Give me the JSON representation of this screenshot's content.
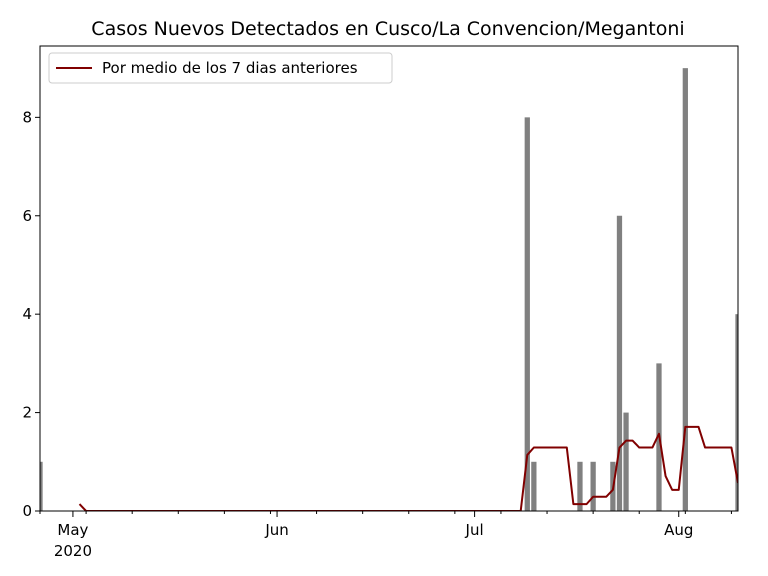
{
  "chart_data": {
    "type": "bar",
    "title": "Casos Nuevos Detectados en Cusco/La Convencion/Megantoni",
    "xlabel": "",
    "ylabel": "",
    "x_start": "2020-04-26",
    "x_end": "2020-08-10",
    "ylim": [
      0,
      9.45
    ],
    "y_ticks": [
      0,
      2,
      4,
      6,
      8
    ],
    "x_ticks": [
      {
        "date": "2020-05-01",
        "label": "May",
        "sublabel": "2020"
      },
      {
        "date": "2020-06-01",
        "label": "Jun",
        "sublabel": ""
      },
      {
        "date": "2020-07-01",
        "label": "Jul",
        "sublabel": ""
      },
      {
        "date": "2020-08-01",
        "label": "Aug",
        "sublabel": ""
      }
    ],
    "grid": false,
    "legend_position": "top-left",
    "bar_color": "#808080",
    "line_color": "#800000",
    "series": [
      {
        "kind": "bar",
        "values": [
          {
            "date": "2020-04-26",
            "value": 1
          },
          {
            "date": "2020-07-09",
            "value": 8
          },
          {
            "date": "2020-07-10",
            "value": 1
          },
          {
            "date": "2020-07-17",
            "value": 1
          },
          {
            "date": "2020-07-19",
            "value": 1
          },
          {
            "date": "2020-07-22",
            "value": 1
          },
          {
            "date": "2020-07-23",
            "value": 6
          },
          {
            "date": "2020-07-24",
            "value": 2
          },
          {
            "date": "2020-07-29",
            "value": 3
          },
          {
            "date": "2020-08-02",
            "value": 9
          },
          {
            "date": "2020-08-10",
            "value": 4
          }
        ]
      },
      {
        "kind": "line",
        "name": "Por medio de los 7 dias anteriores",
        "values": [
          {
            "date": "2020-05-02",
            "value": 0.14
          },
          {
            "date": "2020-05-03",
            "value": 0
          },
          {
            "date": "2020-07-08",
            "value": 0
          },
          {
            "date": "2020-07-09",
            "value": 1.14
          },
          {
            "date": "2020-07-10",
            "value": 1.29
          },
          {
            "date": "2020-07-15",
            "value": 1.29
          },
          {
            "date": "2020-07-16",
            "value": 0.14
          },
          {
            "date": "2020-07-18",
            "value": 0.14
          },
          {
            "date": "2020-07-19",
            "value": 0.29
          },
          {
            "date": "2020-07-21",
            "value": 0.29
          },
          {
            "date": "2020-07-22",
            "value": 0.43
          },
          {
            "date": "2020-07-23",
            "value": 1.29
          },
          {
            "date": "2020-07-24",
            "value": 1.43
          },
          {
            "date": "2020-07-25",
            "value": 1.43
          },
          {
            "date": "2020-07-26",
            "value": 1.29
          },
          {
            "date": "2020-07-28",
            "value": 1.29
          },
          {
            "date": "2020-07-29",
            "value": 1.57
          },
          {
            "date": "2020-07-30",
            "value": 0.71
          },
          {
            "date": "2020-07-31",
            "value": 0.43
          },
          {
            "date": "2020-08-01",
            "value": 0.43
          },
          {
            "date": "2020-08-02",
            "value": 1.71
          },
          {
            "date": "2020-08-04",
            "value": 1.71
          },
          {
            "date": "2020-08-05",
            "value": 1.29
          },
          {
            "date": "2020-08-09",
            "value": 1.29
          },
          {
            "date": "2020-08-10",
            "value": 0.57
          }
        ]
      }
    ]
  }
}
